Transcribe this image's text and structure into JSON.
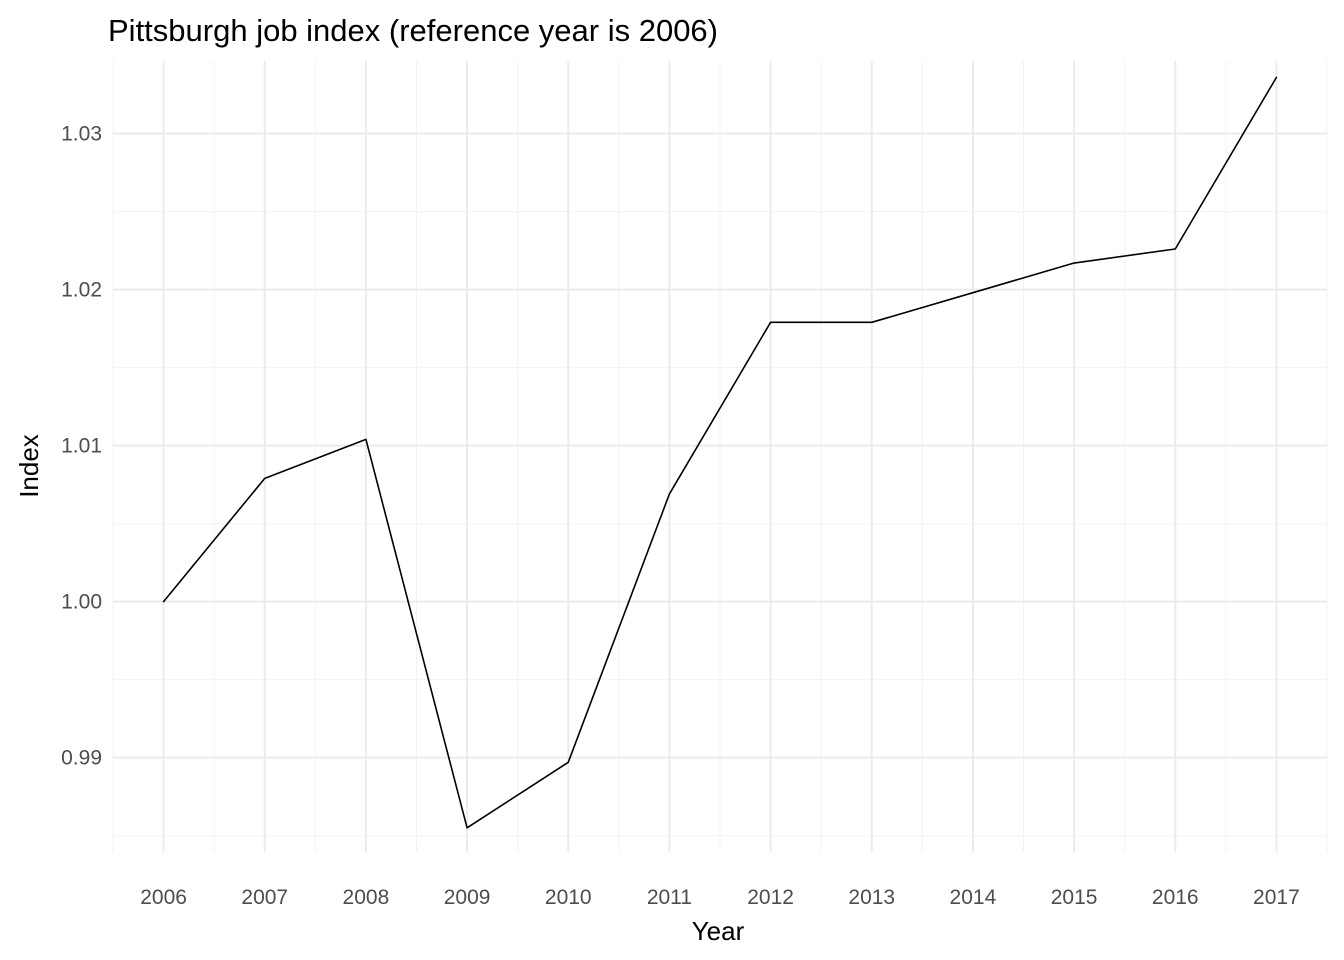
{
  "chart_data": {
    "type": "line",
    "title": "Pittsburgh job index (reference year is 2006)",
    "xlabel": "Year",
    "ylabel": "Index",
    "x": [
      2006,
      2007,
      2008,
      2009,
      2010,
      2011,
      2012,
      2013,
      2014,
      2015,
      2016,
      2017
    ],
    "x_tick_labels": [
      "2006",
      "2007",
      "2008",
      "2009",
      "2010",
      "2011",
      "2012",
      "2013",
      "2014",
      "2015",
      "2016",
      "2017"
    ],
    "series": [
      {
        "name": "Index",
        "color": "#000000",
        "values": [
          1.0,
          1.0079,
          1.0104,
          0.9855,
          0.9897,
          1.0069,
          1.0179,
          1.0179,
          1.0198,
          1.0217,
          1.0226,
          1.0336
        ]
      }
    ],
    "y_ticks": [
      0.99,
      1.0,
      1.01,
      1.02,
      1.03
    ],
    "y_tick_labels": [
      "0.99",
      "1.00",
      "1.01",
      "1.02",
      "1.03"
    ],
    "xlim": [
      2005.5,
      2017.5
    ],
    "ylim": [
      0.98395,
      1.03465
    ],
    "grid": true,
    "theme": "minimal",
    "colors": {
      "background": "#ffffff",
      "grid_major": "#ebebeb",
      "grid_minor": "#f3f3f3",
      "tick_text": "#4d4d4d",
      "title_text": "#000000"
    }
  }
}
